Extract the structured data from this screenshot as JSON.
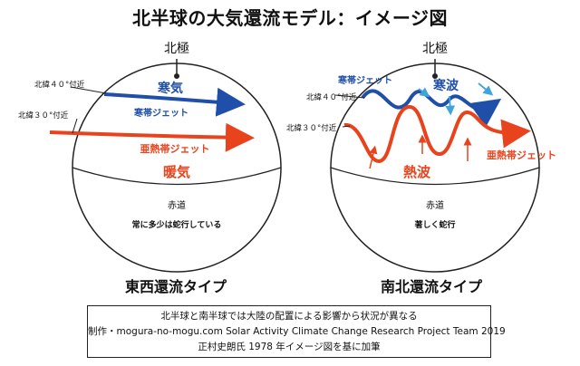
{
  "title": "北半球の大気還流モデル：イメージ図",
  "north_pole": "北極",
  "lat40": "北緯４０°付近",
  "lat30": "北緯３０°付近",
  "equator": "赤道",
  "left_panel": {
    "cold_air": "寒気",
    "polar_jet": "寒帯ジェット",
    "subtropical_jet": "亜熱帯ジェット",
    "warm_air": "暖気",
    "caption": "常に多少は蛇行している",
    "type_label": "東西還流タイプ"
  },
  "right_panel": {
    "cold_wave": "寒波",
    "polar_jet": "寒帯ジェット",
    "subtropical_jet": "亜熱帯ジェット",
    "heat_wave": "熱波",
    "caption": "著しく蛇行",
    "type_label": "南北還流タイプ"
  },
  "notes": {
    "line1": "北半球と南半球では大陸の配置による影響から状況が異なる",
    "line2": "制作・mogura-no-mogu.com  Solar Activity Climate Change Research Project Team 2019",
    "line3": "正村史朗氏 1978 年イメージ図を基に加筆"
  },
  "colors": {
    "blue_jet": "#1f4fa8",
    "red_jet": "#e8431c",
    "light_blue": "#3fa3dc"
  }
}
